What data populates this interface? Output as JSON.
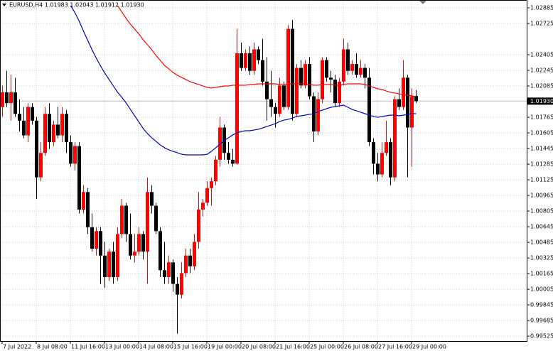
{
  "chart_data": {
    "type": "candlestick",
    "title": "EURUSD,H4  1.01983 1.02043 1.01912 1.01930",
    "categories": [
      "7 Jul 2022",
      null,
      null,
      null,
      null,
      null,
      null,
      null,
      "8 Jul 08:00",
      null,
      null,
      null,
      null,
      null,
      null,
      null,
      "11 Jul 16:00",
      null,
      null,
      null,
      null,
      null,
      null,
      null,
      "13 Jul 00:00",
      null,
      null,
      null,
      null,
      null,
      null,
      null,
      "14 Jul 08:00",
      null,
      null,
      null,
      null,
      null,
      null,
      null,
      "15 Jul 16:00",
      null,
      null,
      null,
      null,
      null,
      null,
      null,
      "19 Jul 00:00",
      null,
      null,
      null,
      null,
      null,
      null,
      null,
      "20 Jul 08:00",
      null,
      null,
      null,
      null,
      null,
      null,
      null,
      "21 Jul 16:00",
      null,
      null,
      null,
      null,
      null,
      null,
      null,
      "25 Jul 00:00",
      null,
      null,
      null,
      null,
      null,
      null,
      null,
      "26 Jul 08:00",
      null,
      null,
      null,
      null,
      null,
      null,
      null,
      "27 Jul 16:00",
      null,
      null,
      null,
      null,
      null,
      null,
      null,
      "29 Jul 00:00",
      null
    ],
    "open": [
      1.0187,
      1.0202,
      1.0191,
      1.0202,
      1.018,
      1.0173,
      1.0158,
      1.0187,
      1.0173,
      1.0115,
      1.014,
      1.018,
      1.0151,
      1.0169,
      1.0158,
      1.018,
      1.0151,
      1.0129,
      1.0147,
      1.0082,
      1.01,
      1.0064,
      1.0042,
      1.006,
      1.0035,
      1.0013,
      1.0039,
      1.0013,
      1.0057,
      1.0086,
      1.0057,
      1.0035,
      1.0039,
      1.0057,
      1.0039,
      1.01,
      1.0086,
      1.006,
      1.002,
      1.0013,
      1.0028,
      1.0006,
      0.9995,
      1.0017,
      1.0035,
      1.0024,
      1.0049,
      1.0082,
      1.0089,
      1.0104,
      1.0111,
      1.0133,
      1.0166,
      1.014,
      1.0133,
      1.0129,
      1.0242,
      1.0227,
      1.0242,
      1.0224,
      1.0246,
      1.0235,
      1.0213,
      1.0195,
      1.0187,
      1.018,
      1.0209,
      1.0187,
      1.0267,
      1.018,
      1.0227,
      1.0209,
      1.0231,
      1.0198,
      1.0162,
      1.0195,
      1.0235,
      1.0217,
      1.0215,
      1.0191,
      1.0213,
      1.0246,
      1.0224,
      1.0231,
      1.022,
      1.0227,
      1.0217,
      1.0151,
      1.0129,
      1.0118,
      1.014,
      1.0151,
      1.0115,
      1.0195,
      1.0187,
      1.0217,
      1.0166,
      1.01983
    ],
    "high": [
      1.0209,
      1.0224,
      1.022,
      1.0217,
      1.0195,
      1.0187,
      1.0191,
      1.0191,
      1.0177,
      1.0151,
      1.0187,
      1.0191,
      1.0173,
      1.0187,
      1.0187,
      1.0184,
      1.0158,
      1.0151,
      1.0151,
      1.0107,
      1.0104,
      1.0078,
      1.0064,
      1.0064,
      1.0049,
      1.0042,
      1.0049,
      1.0064,
      1.0093,
      1.0089,
      1.0078,
      1.0057,
      1.0064,
      1.006,
      1.0115,
      1.0107,
      1.0089,
      1.0064,
      1.0049,
      1.0035,
      1.0031,
      1.0013,
      1.0028,
      1.0042,
      1.0042,
      1.0057,
      1.01,
      1.0093,
      1.0111,
      1.0115,
      1.0137,
      1.0177,
      1.0169,
      1.0151,
      1.0144,
      1.0267,
      1.0253,
      1.0246,
      1.0249,
      1.0253,
      1.0249,
      1.0257,
      1.0238,
      1.0224,
      1.0191,
      1.0217,
      1.0213,
      1.0271,
      1.0276,
      1.0231,
      1.0235,
      1.0235,
      1.0238,
      1.0202,
      1.0202,
      1.0238,
      1.0238,
      1.0224,
      1.022,
      1.0217,
      1.0257,
      1.0253,
      1.0235,
      1.0242,
      1.0235,
      1.0231,
      1.0227,
      1.0155,
      1.014,
      1.0151,
      1.0173,
      1.0155,
      1.0198,
      1.0206,
      1.0235,
      1.022,
      1.0206,
      1.02043
    ],
    "low": [
      1.0177,
      1.0187,
      1.0173,
      1.0177,
      1.0162,
      1.0155,
      1.0151,
      1.0169,
      1.0093,
      1.0111,
      1.0137,
      1.0144,
      1.0147,
      1.0155,
      1.0151,
      1.014,
      1.0126,
      1.0122,
      1.0078,
      1.0078,
      1.0057,
      1.0039,
      1.0035,
      1.0006,
      1.0002,
      1.0009,
      1.0006,
      1.0009,
      1.0053,
      1.0049,
      1.0031,
      1.0028,
      1.0035,
      1.0031,
      1.0006,
      1.0078,
      1.0057,
      1.0013,
      1.0006,
      1.0006,
      0.9998,
      0.9955,
      0.9991,
      1.0013,
      1.0017,
      1.002,
      1.0042,
      1.0075,
      1.0086,
      1.0086,
      1.0107,
      1.0126,
      1.0133,
      1.0129,
      1.0126,
      1.0128,
      1.0224,
      1.0224,
      1.022,
      1.022,
      1.0231,
      1.0209,
      1.0173,
      1.0177,
      1.0166,
      1.0177,
      1.0184,
      1.0184,
      1.0173,
      1.0177,
      1.0206,
      1.0206,
      1.0195,
      1.0151,
      1.0158,
      1.0191,
      1.0213,
      1.0202,
      1.0187,
      1.0187,
      1.0209,
      1.022,
      1.022,
      1.0217,
      1.0217,
      1.0206,
      1.0147,
      1.0118,
      1.0111,
      1.0115,
      1.0137,
      1.0107,
      1.0111,
      1.0184,
      1.0184,
      1.0115,
      1.0126,
      1.01912
    ],
    "close": [
      1.0202,
      1.0191,
      1.0202,
      1.018,
      1.0173,
      1.0158,
      1.0187,
      1.0173,
      1.0115,
      1.014,
      1.018,
      1.0151,
      1.0169,
      1.0158,
      1.018,
      1.0151,
      1.0129,
      1.0147,
      1.0082,
      1.01,
      1.0064,
      1.0042,
      1.006,
      1.0035,
      1.0013,
      1.0039,
      1.0013,
      1.0057,
      1.0086,
      1.0057,
      1.0035,
      1.0039,
      1.0057,
      1.0039,
      1.01,
      1.0086,
      1.006,
      1.002,
      1.0013,
      1.0028,
      1.0006,
      0.9995,
      1.0017,
      1.0035,
      1.0024,
      1.0049,
      1.0082,
      1.0089,
      1.0104,
      1.0111,
      1.0133,
      1.0166,
      1.014,
      1.0133,
      1.0129,
      1.0242,
      1.0227,
      1.0242,
      1.0224,
      1.0246,
      1.0235,
      1.0213,
      1.0195,
      1.0187,
      1.018,
      1.0209,
      1.0187,
      1.0267,
      1.018,
      1.0227,
      1.0209,
      1.0231,
      1.0198,
      1.0162,
      1.0195,
      1.0235,
      1.0217,
      1.0215,
      1.0191,
      1.0213,
      1.0246,
      1.0224,
      1.0231,
      1.022,
      1.0227,
      1.0217,
      1.0151,
      1.0129,
      1.0118,
      1.014,
      1.0151,
      1.0115,
      1.0195,
      1.0187,
      1.0217,
      1.0166,
      1.0198,
      1.0193
    ],
    "bull_color": "#ff0000",
    "bear_color": "#000000",
    "overlays": [
      {
        "color": "#ff0000",
        "values": [
          null,
          null,
          null,
          null,
          null,
          null,
          null,
          null,
          null,
          null,
          null,
          null,
          null,
          null,
          null,
          null,
          null,
          null,
          null,
          null,
          null,
          null,
          null,
          null,
          null,
          null,
          null,
          1.02907,
          1.02841,
          1.02776,
          1.02718,
          1.02667,
          1.02616,
          1.02558,
          1.02507,
          1.02456,
          1.02398,
          1.02347,
          1.02296,
          1.0226,
          1.02223,
          1.02194,
          1.02173,
          1.02151,
          1.02129,
          1.02114,
          1.021,
          1.02085,
          1.02071,
          1.02064,
          1.02071,
          1.02078,
          1.02085,
          1.02085,
          1.02093,
          1.02093,
          1.02093,
          1.02093,
          1.021,
          1.021,
          1.02107,
          1.02107,
          1.02107,
          1.02107,
          1.02107,
          1.021,
          1.021,
          1.02107,
          1.02107,
          1.02107,
          1.02107,
          1.02107,
          1.021,
          1.02093,
          1.02093,
          1.021,
          1.021,
          1.021,
          1.02093,
          1.02093,
          1.021,
          1.02107,
          1.02107,
          1.02107,
          1.02107,
          1.021,
          1.02085,
          1.02071,
          1.02056,
          1.02049,
          1.02034,
          1.0202,
          1.02013,
          1.02005,
          1.01998,
          1.01991,
          1.01984,
          1.01976
        ]
      },
      {
        "color": "#0000c8",
        "values": [
          null,
          null,
          null,
          null,
          null,
          null,
          null,
          null,
          null,
          null,
          null,
          null,
          null,
          null,
          null,
          null,
          1.02907,
          1.02834,
          1.02747,
          1.02645,
          1.02551,
          1.02456,
          1.02369,
          1.02289,
          1.02216,
          1.02151,
          1.02085,
          1.0202,
          1.01969,
          1.01911,
          1.01845,
          1.0178,
          1.01715,
          1.01649,
          1.01598,
          1.01555,
          1.01518,
          1.01482,
          1.01453,
          1.01431,
          1.01416,
          1.01402,
          1.01387,
          1.0138,
          1.0138,
          1.0138,
          1.0138,
          1.0138,
          1.01387,
          1.01416,
          1.01453,
          1.01489,
          1.01526,
          1.01555,
          1.01584,
          1.01606,
          1.0162,
          1.01627,
          1.01627,
          1.01635,
          1.01642,
          1.01656,
          1.01671,
          1.01685,
          1.017,
          1.01722,
          1.01736,
          1.01744,
          1.01758,
          1.01773,
          1.0178,
          1.01787,
          1.01795,
          1.01802,
          1.01824,
          1.01838,
          1.01853,
          1.01867,
          1.01875,
          1.01882,
          1.01889,
          1.01867,
          1.01845,
          1.01831,
          1.01816,
          1.01802,
          1.01787,
          1.01773,
          1.01765,
          1.01773,
          1.0178,
          1.01787,
          1.01787,
          1.0178,
          1.01787,
          1.01795,
          1.01802,
          1.01802
        ]
      }
    ],
    "current_price": {
      "value": 1.0193,
      "label": "1.01930"
    },
    "ylim": [
      0.99475,
      1.02965
    ],
    "yticks": [
      1.02885,
      1.02725,
      1.02405,
      1.02245,
      1.02085,
      1.01765,
      1.01605,
      1.01445,
      1.01285,
      1.01125,
      1.00965,
      1.00805,
      1.00645,
      1.00485,
      1.00325,
      1.00165,
      1.00005,
      0.99845,
      0.99685,
      0.99525
    ],
    "grid": true
  }
}
